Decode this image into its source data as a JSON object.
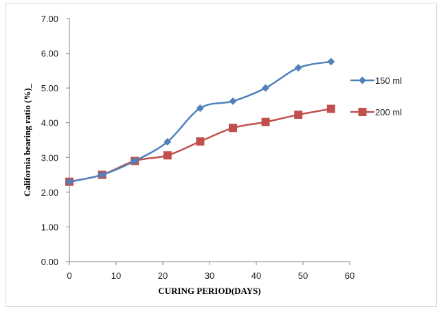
{
  "chart_data": {
    "type": "line",
    "xlabel": "CURING PERIOD(DAYS)",
    "ylabel": "California bearing ratio  (%)_",
    "xlim": [
      0,
      60
    ],
    "ylim": [
      0,
      7
    ],
    "x_ticks": [
      "0",
      "10",
      "20",
      "30",
      "40",
      "50",
      "60"
    ],
    "y_ticks": [
      "0.00",
      "1.00",
      "2.00",
      "3.00",
      "4.00",
      "5.00",
      "6.00",
      "7.00"
    ],
    "grid": false,
    "legend_position": "right",
    "series": [
      {
        "name": "150 ml",
        "color": "#4f81bd",
        "marker": "diamond",
        "x": [
          0,
          7,
          14,
          21,
          28,
          35,
          42,
          49,
          56
        ],
        "y": [
          2.3,
          2.5,
          2.9,
          3.45,
          4.42,
          4.62,
          5.0,
          5.58,
          5.76
        ]
      },
      {
        "name": "200 ml",
        "color": "#c0504d",
        "marker": "square",
        "x": [
          0,
          7,
          14,
          21,
          28,
          35,
          42,
          49,
          56
        ],
        "y": [
          2.3,
          2.5,
          2.9,
          3.06,
          3.46,
          3.85,
          4.02,
          4.23,
          4.4
        ]
      }
    ]
  }
}
